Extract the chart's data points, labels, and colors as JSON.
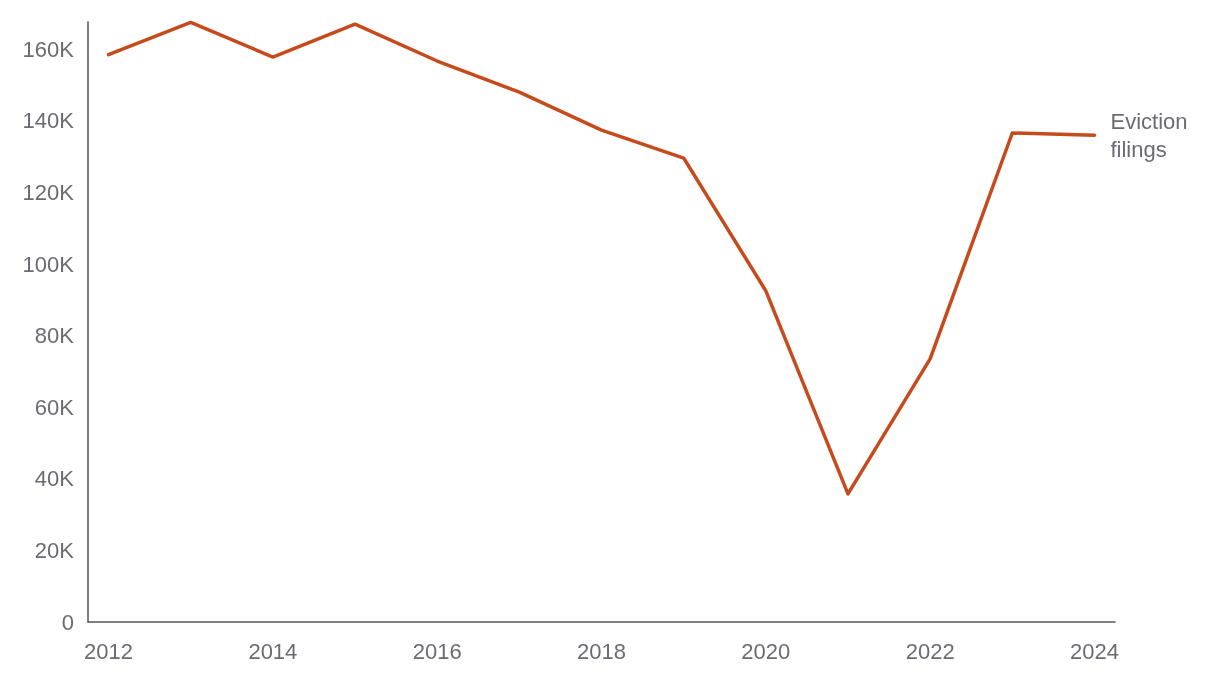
{
  "chart_data": {
    "type": "line",
    "x": [
      2012,
      2013,
      2014,
      2015,
      2016,
      2017,
      2018,
      2019,
      2020,
      2021,
      2022,
      2023,
      2024
    ],
    "series": [
      {
        "name": "Eviction filings",
        "color": "#c64b1c",
        "values": [
          158500,
          167500,
          157800,
          167000,
          156700,
          148000,
          137400,
          129600,
          92500,
          35800,
          73500,
          136600,
          136000
        ]
      }
    ],
    "xlim": [
      2011.75,
      2024.25
    ],
    "xticks": [
      2012,
      2014,
      2016,
      2018,
      2020,
      2022,
      2024
    ],
    "ylim": [
      0,
      167600
    ],
    "yticks": [
      0,
      {
        "value": 20000,
        "label": "20K"
      },
      {
        "value": 40000,
        "label": "40K"
      },
      {
        "value": 60000,
        "label": "60K"
      },
      {
        "value": 80000,
        "label": "80K"
      },
      {
        "value": 100000,
        "label": "100K"
      },
      {
        "value": 120000,
        "label": "120K"
      },
      {
        "value": 140000,
        "label": "140K"
      },
      {
        "value": 160000,
        "label": "160K"
      }
    ],
    "grid": false,
    "legend": false,
    "marker": "none",
    "line_style": "solid"
  }
}
